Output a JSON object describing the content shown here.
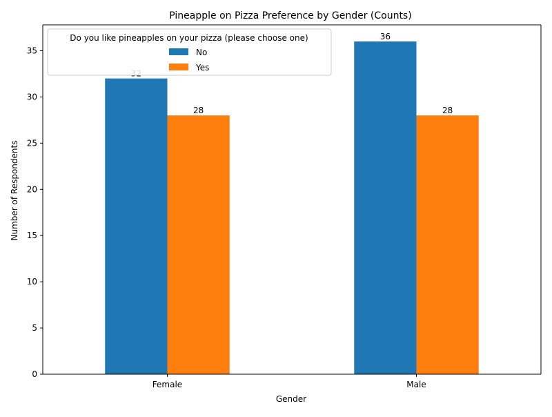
{
  "chart_data": {
    "type": "bar",
    "title": "Pineapple on Pizza Preference by Gender (Counts)",
    "xlabel": "Gender",
    "ylabel": "Number of Respondents",
    "categories": [
      "Female",
      "Male"
    ],
    "series": [
      {
        "name": "No",
        "values": [
          32,
          36
        ],
        "color": "#1f77b4"
      },
      {
        "name": "Yes",
        "values": [
          28,
          28
        ],
        "color": "#ff7f0e"
      }
    ],
    "ylim": [
      0,
      37.8
    ],
    "yticks": [
      0,
      5,
      10,
      15,
      20,
      25,
      30,
      35
    ],
    "grid": false,
    "legend": {
      "title": "Do you like pineapples on your pizza (please choose one)",
      "placement": "top-left"
    },
    "data_labels": true
  }
}
